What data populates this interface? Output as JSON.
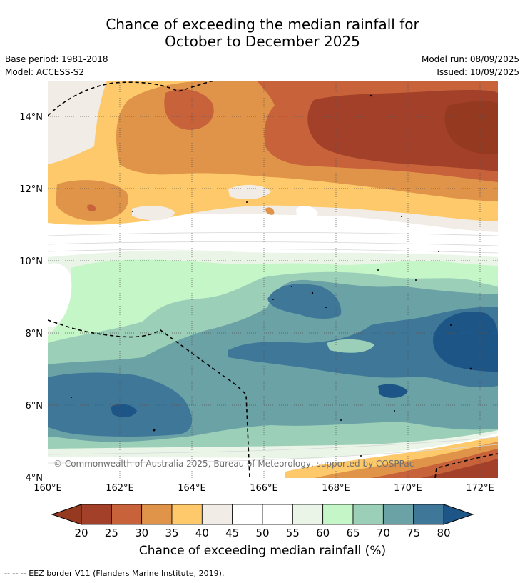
{
  "header": {
    "title_line1": "Chance of exceeding the median rainfall for",
    "title_line2": "October to December 2025",
    "base_period": "Base period: 1981-2018",
    "model": "Model: ACCESS-S2",
    "model_run": "Model run: 08/09/2025",
    "issued": "Issued: 10/09/2025"
  },
  "map": {
    "lat_labels": [
      "4°N",
      "6°N",
      "8°N",
      "10°N",
      "12°N",
      "14°N"
    ],
    "lon_labels": [
      "160°E",
      "162°E",
      "164°E",
      "166°E",
      "168°E",
      "170°E",
      "172°E"
    ],
    "copyright": "© Commonwealth of Australia 2025, Bureau of Meteorology, supported by COSPPac"
  },
  "colorbar": {
    "ticks": [
      "20",
      "25",
      "30",
      "35",
      "40",
      "45",
      "50",
      "55",
      "60",
      "65",
      "70",
      "75",
      "80"
    ],
    "colors": [
      "#a3402a",
      "#c8623a",
      "#e0944a",
      "#fec96a",
      "#f1ece6",
      "#ffffff",
      "#ffffff",
      "#eaf5e8",
      "#c5f6c7",
      "#9ccfb8",
      "#6ba2a5",
      "#3f7799"
    ],
    "under_color": "#953a20",
    "over_color": "#1e5587",
    "label": "Chance of exceeding median rainfall (%)"
  },
  "legend": {
    "eez_text": "--  --  -- EEZ border V11 (Flanders Marine Institute, 2019)."
  }
}
